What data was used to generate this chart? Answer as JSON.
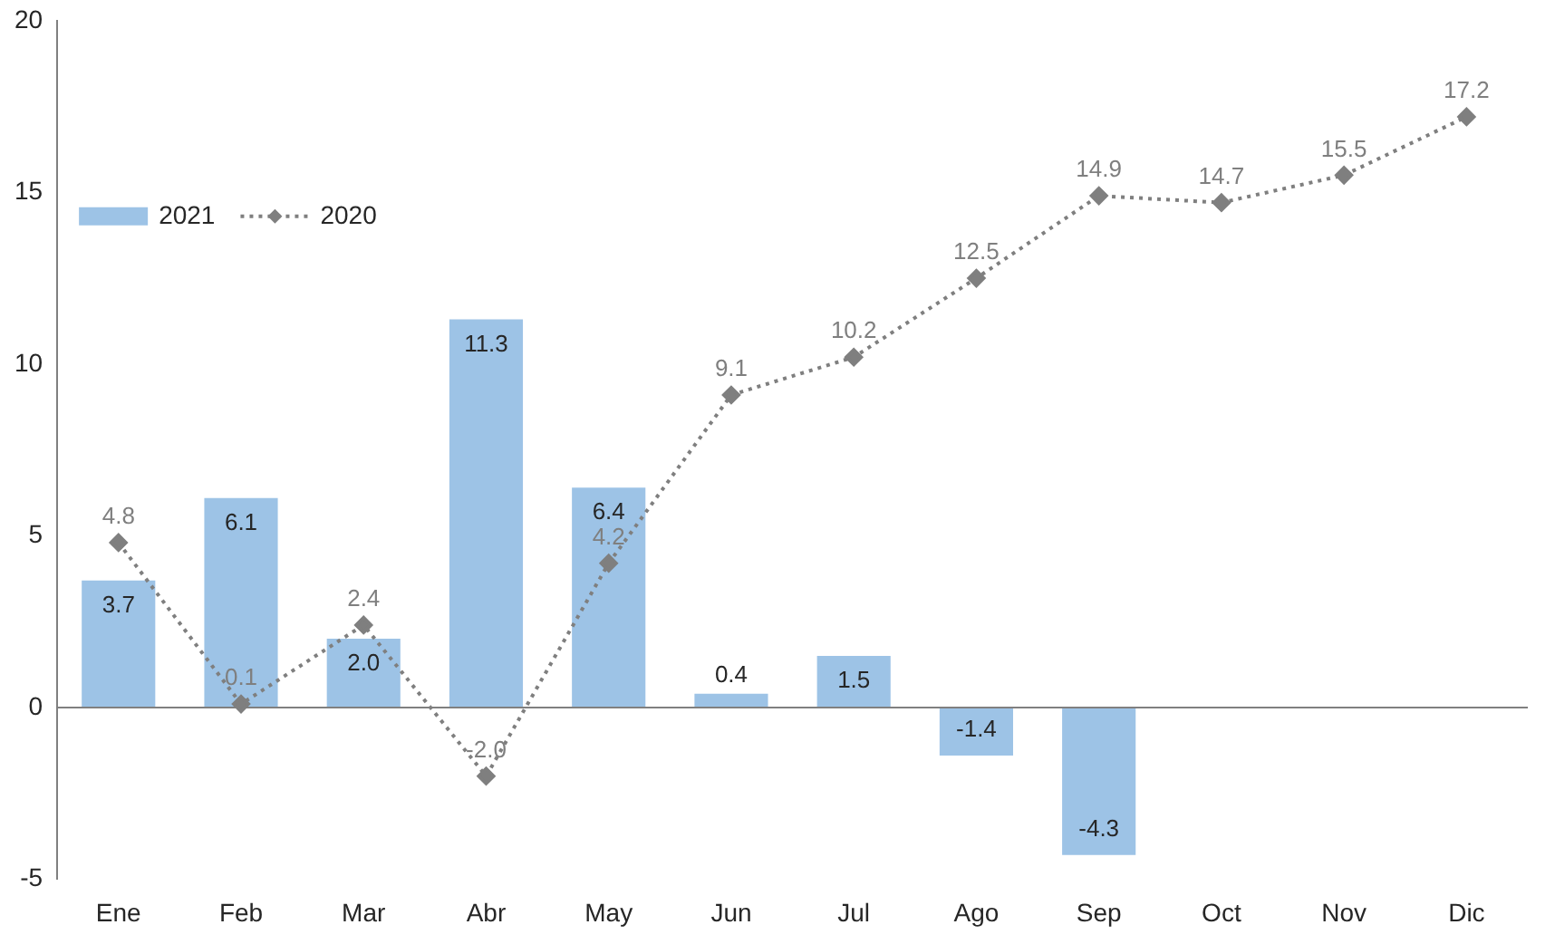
{
  "chart_data": {
    "type": "bar",
    "categories": [
      "Ene",
      "Feb",
      "Mar",
      "Abr",
      "May",
      "Jun",
      "Jul",
      "Ago",
      "Sep",
      "Oct",
      "Nov",
      "Dic"
    ],
    "series": [
      {
        "name": "2021",
        "color": "#9dc3e6",
        "values": [
          3.7,
          6.1,
          2.0,
          11.3,
          6.4,
          0.4,
          1.5,
          -1.4,
          -4.3,
          null,
          null,
          null
        ],
        "value_labels": [
          "3.7",
          "6.1",
          "2.0",
          "11.3",
          "6.4",
          "0.4",
          "1.5",
          "-1.4",
          "-4.3",
          null,
          null,
          null
        ]
      },
      {
        "name": "2020",
        "type": "line",
        "color": "#7f7f7f",
        "line_style": "dotted",
        "marker": "diamond",
        "values": [
          4.8,
          0.1,
          2.4,
          -2.0,
          4.2,
          9.1,
          10.2,
          12.5,
          14.9,
          14.7,
          15.5,
          17.2
        ],
        "value_labels": [
          "4.8",
          "0.1",
          "2.4",
          "-2.0",
          "4.2",
          "9.1",
          "10.2",
          "12.5",
          "14.9",
          "14.7",
          "15.5",
          "17.2"
        ]
      }
    ],
    "ylim": [
      -5,
      20
    ],
    "yticks": [
      -5,
      0,
      5,
      10,
      15,
      20
    ],
    "ref_lines": [
      {
        "axis": "y",
        "value": 0,
        "color": "#808080"
      }
    ],
    "legend": "top left"
  }
}
